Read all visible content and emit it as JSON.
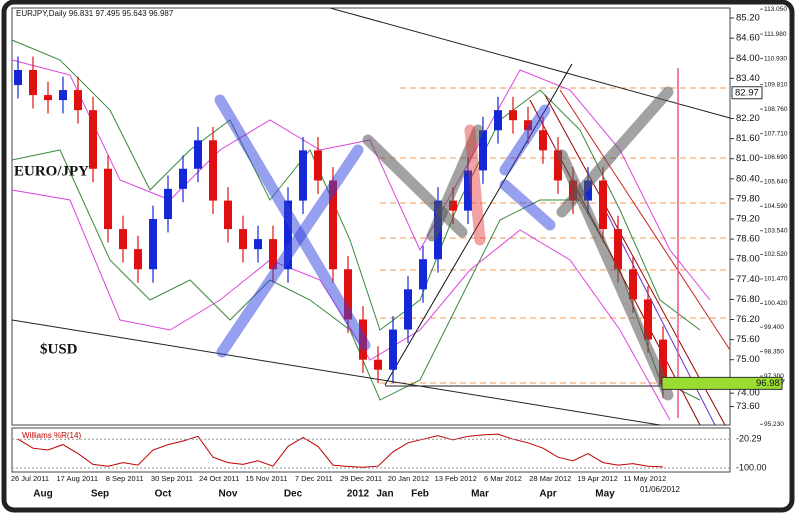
{
  "chart_data": {
    "type": "candlestick",
    "title": "EURJPY,Daily 96.831 97.495 95.643 96.987",
    "annotations": [
      "EURO/JPY",
      "$USD"
    ],
    "up_color": "#1428d8",
    "down_color": "#e01010",
    "open": [
      83.2,
      83.65,
      82.9,
      82.75,
      83.05,
      82.45,
      80.7,
      78.9,
      78.3,
      77.7,
      79.2,
      80.1,
      80.7,
      81.55,
      79.75,
      78.9,
      78.3,
      78.6,
      77.7,
      79.75,
      81.25,
      80.35,
      77.7,
      76.2,
      75.0,
      74.7,
      75.9,
      77.1,
      78.0,
      79.75,
      79.45,
      80.65,
      81.85,
      82.45,
      82.15,
      81.85,
      81.25,
      80.35,
      79.75,
      80.35,
      78.9,
      77.7,
      76.8,
      75.6
    ],
    "high": [
      84.05,
      84.05,
      83.3,
      83.45,
      83.45,
      82.85,
      81.1,
      79.3,
      78.7,
      79.6,
      80.5,
      81.1,
      81.95,
      81.95,
      80.15,
      79.3,
      79.0,
      79.0,
      80.15,
      81.65,
      81.65,
      80.75,
      78.1,
      76.6,
      75.4,
      76.3,
      77.5,
      78.4,
      80.15,
      80.15,
      81.05,
      82.25,
      82.85,
      82.85,
      82.55,
      82.25,
      81.65,
      80.75,
      80.75,
      80.75,
      79.3,
      78.1,
      77.2,
      76.0
    ],
    "low": [
      82.8,
      82.5,
      82.35,
      82.35,
      82.05,
      80.3,
      78.5,
      77.9,
      77.3,
      77.3,
      78.8,
      79.7,
      80.3,
      79.35,
      78.5,
      77.9,
      77.9,
      77.3,
      77.3,
      79.35,
      79.95,
      77.3,
      75.8,
      74.6,
      74.3,
      74.3,
      75.5,
      76.7,
      77.6,
      79.05,
      79.05,
      80.25,
      81.45,
      81.75,
      81.45,
      80.85,
      79.95,
      79.35,
      79.35,
      78.5,
      77.3,
      76.4,
      75.2,
      73.85
    ],
    "close": [
      83.65,
      82.9,
      82.75,
      83.05,
      82.45,
      80.7,
      78.9,
      78.3,
      77.7,
      79.2,
      80.1,
      80.7,
      81.55,
      79.75,
      78.9,
      78.3,
      78.6,
      77.7,
      79.75,
      81.25,
      80.35,
      77.7,
      76.2,
      75.0,
      74.7,
      75.9,
      77.1,
      78.0,
      79.75,
      79.45,
      80.65,
      81.85,
      82.45,
      82.15,
      81.85,
      81.25,
      80.35,
      79.75,
      80.35,
      78.9,
      77.7,
      76.8,
      75.6,
      74.25
    ],
    "x_labels": [
      "26 Jul 2011",
      "17 Aug 2011",
      "8 Sep 2011",
      "30 Sep 2011",
      "24 Oct 2011",
      "15 Nov 2011",
      "7 Dec 2011",
      "29 Dec 2011",
      "20 Jan 2012",
      "13 Feb 2012",
      "6 Mar 2012",
      "28 Mar 2012",
      "19 Apr 2012",
      "11 May 2012"
    ],
    "month_labels": [
      "Aug",
      "Sep",
      "Oct",
      "Nov",
      "Dec",
      "2012",
      "Jan",
      "Feb",
      "Mar",
      "Apr",
      "May",
      "01/06/2012"
    ],
    "ylim": [
      73.05,
      85.5
    ],
    "yticks": [
      {
        "value": 85.2,
        "label": "85.20"
      },
      {
        "value": 84.6,
        "label": "84.60"
      },
      {
        "value": 84.0,
        "label": "84.00"
      },
      {
        "value": 83.4,
        "label": "83.40"
      },
      {
        "value": 82.2,
        "label": "82.20"
      },
      {
        "value": 81.6,
        "label": "81.60"
      },
      {
        "value": 81.0,
        "label": "81.00"
      },
      {
        "value": 80.4,
        "label": "80.40"
      },
      {
        "value": 79.8,
        "label": "79.80"
      },
      {
        "value": 79.2,
        "label": "79.20"
      },
      {
        "value": 78.6,
        "label": "78.60"
      },
      {
        "value": 78.0,
        "label": "78.00"
      },
      {
        "value": 77.4,
        "label": "77.40"
      },
      {
        "value": 76.8,
        "label": "76.80"
      },
      {
        "value": 76.2,
        "label": "76.20"
      },
      {
        "value": 75.6,
        "label": "75.60"
      },
      {
        "value": 75.0,
        "label": "75.00"
      },
      {
        "value": 74.0,
        "label": "74.00"
      },
      {
        "value": 73.6,
        "label": "73.60"
      }
    ],
    "y2lim": [
      95.2,
      113.1
    ],
    "y2ticks": [
      {
        "value": 113.05,
        "label": "113.050"
      },
      {
        "value": 111.98,
        "label": "111.980"
      },
      {
        "value": 110.93,
        "label": "110.930"
      },
      {
        "value": 109.81,
        "label": "109.810"
      },
      {
        "value": 108.76,
        "label": "108.760"
      },
      {
        "value": 107.71,
        "label": "107.710"
      },
      {
        "value": 106.69,
        "label": "106.690"
      },
      {
        "value": 105.64,
        "label": "105.640"
      },
      {
        "value": 104.59,
        "label": "104.590"
      },
      {
        "value": 103.54,
        "label": "103.540"
      },
      {
        "value": 102.52,
        "label": "102.520"
      },
      {
        "value": 101.47,
        "label": "101.470"
      },
      {
        "value": 100.42,
        "label": "100.420"
      },
      {
        "value": 99.4,
        "label": "99.400"
      },
      {
        "value": 98.35,
        "label": "98.350"
      },
      {
        "value": 97.3,
        "label": "97.300"
      },
      {
        "value": 95.23,
        "label": "95.230"
      }
    ],
    "markers": [
      {
        "value": 82.97,
        "label": "82.97",
        "axis": "y",
        "color": "#ffffff"
      },
      {
        "value": 96.987,
        "label": "96.987",
        "axis": "y2",
        "color": "#99dd33"
      }
    ],
    "indicator": {
      "name": "Williams %R(14)",
      "color": "#c00000",
      "ylim": [
        -100,
        0
      ],
      "values": [
        -20,
        -45,
        -50,
        -35,
        -60,
        -90,
        -95,
        -85,
        -92,
        -50,
        -35,
        -25,
        -12,
        -70,
        -85,
        -90,
        -80,
        -95,
        -40,
        -15,
        -40,
        -92,
        -96,
        -98,
        -95,
        -55,
        -30,
        -20,
        -10,
        -22,
        -12,
        -8,
        -6,
        -20,
        -30,
        -45,
        -70,
        -80,
        -60,
        -85,
        -92,
        -88,
        -95,
        -97
      ],
      "markers": [
        {
          "value": -20.29,
          "label": "-20.29"
        },
        {
          "value": -100,
          "label": "-100.00"
        }
      ]
    }
  }
}
